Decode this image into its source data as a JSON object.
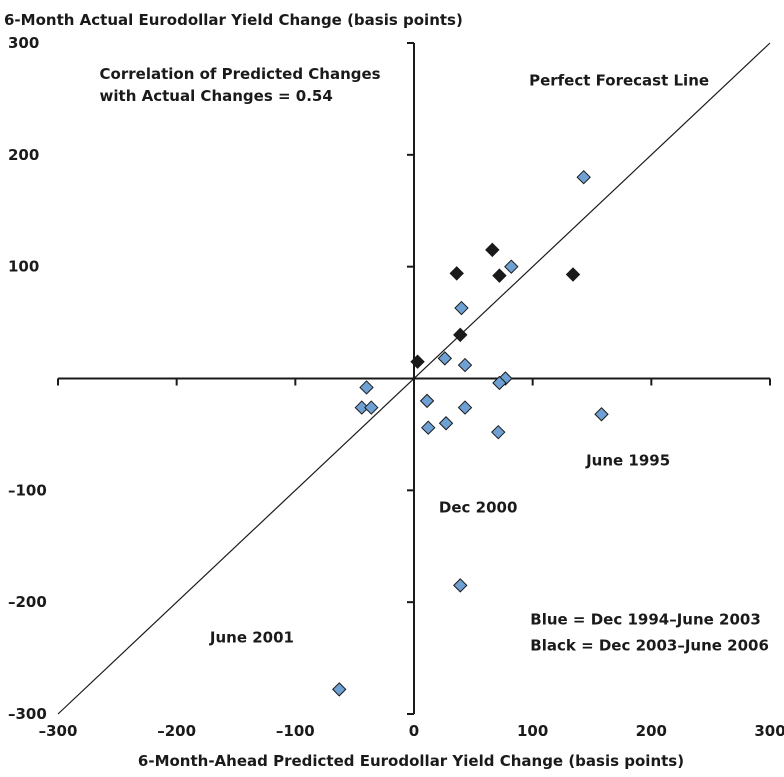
{
  "chart_data": {
    "type": "scatter",
    "title": "",
    "xlabel": "6-Month-Ahead Predicted Eurodollar Yield Change (basis points)",
    "ylabel": "6-Month Actual Eurodollar Yield Change (basis points)",
    "xlim": [
      -300,
      300
    ],
    "ylim": [
      -300,
      300
    ],
    "x_ticks": [
      -300,
      -200,
      -100,
      0,
      100,
      200,
      300
    ],
    "y_ticks": [
      300,
      200,
      100,
      -100,
      -200,
      -300
    ],
    "x_tick_labels": [
      "–300",
      "–200",
      "–100",
      "0",
      "100",
      "200",
      "300"
    ],
    "y_tick_labels": [
      "300",
      "200",
      "100",
      "–100",
      "–200",
      "–300"
    ],
    "grid": false,
    "reference_line": {
      "name": "Perfect Forecast Line",
      "points": [
        [
          -300,
          -300
        ],
        [
          300,
          300
        ]
      ]
    },
    "series": [
      {
        "name": "Blue = Dec 1994–June 2003",
        "color": "#6fa0d4",
        "points": [
          [
            143,
            180
          ],
          [
            82,
            100
          ],
          [
            40,
            63
          ],
          [
            26,
            18
          ],
          [
            43,
            12
          ],
          [
            77,
            0
          ],
          [
            72,
            -4
          ],
          [
            -40,
            -8
          ],
          [
            -44,
            -26
          ],
          [
            -36,
            -26
          ],
          [
            11,
            -20
          ],
          [
            43,
            -26
          ],
          [
            158,
            -32
          ],
          [
            12,
            -44
          ],
          [
            27,
            -40
          ],
          [
            71,
            -48
          ],
          [
            39,
            -185
          ],
          [
            -63,
            -278
          ]
        ]
      },
      {
        "name": "Black = Dec 2003–June 2006",
        "color": "#1a1a1a",
        "points": [
          [
            66,
            115
          ],
          [
            36,
            94
          ],
          [
            72,
            92
          ],
          [
            134,
            93
          ],
          [
            39,
            39
          ],
          [
            3,
            15
          ]
        ]
      }
    ],
    "annotations": [
      {
        "text": "Correlation of Predicted Changes",
        "x": -265,
        "y": 268
      },
      {
        "text": "with Actual Changes = 0.54",
        "x": -265,
        "y": 248
      },
      {
        "text": "Perfect Forecast Line",
        "x": 97,
        "y": 262
      },
      {
        "text": "June 1995",
        "x": 145,
        "y": -78
      },
      {
        "text": "Dec 2000",
        "x": 21,
        "y": -120
      },
      {
        "text": "June 2001",
        "x": -172,
        "y": -236
      },
      {
        "text": "Blue = Dec 1994–June 2003",
        "x": 98,
        "y": -220
      },
      {
        "text": "Black = Dec 2003–June 2006",
        "x": 98,
        "y": -243
      }
    ]
  }
}
